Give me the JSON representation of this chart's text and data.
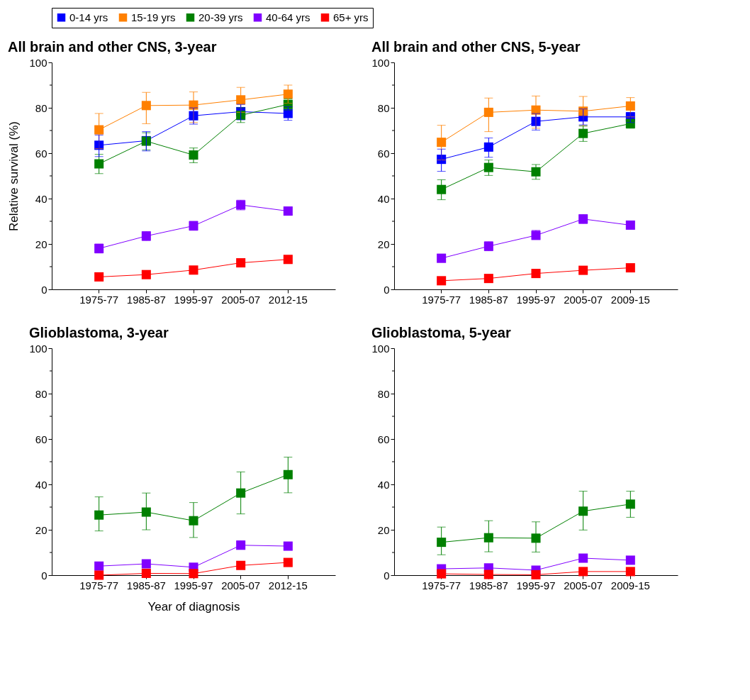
{
  "chart_data": [
    {
      "type": "line",
      "title": "All brain and other CNS, 3-year",
      "ylabel": "Relative survival (%)",
      "categories": [
        "1975-77",
        "1985-87",
        "1995-97",
        "2005-07",
        "2012-15"
      ],
      "ylim": [
        0,
        100
      ],
      "yticks": [
        0,
        {
          "value": 10,
          "label": null
        },
        20,
        {
          "value": 30,
          "label": null
        },
        40,
        {
          "value": 50,
          "label": null
        },
        60,
        {
          "value": 70,
          "label": null
        },
        80,
        {
          "value": 90,
          "label": null
        },
        100
      ],
      "marker": "square",
      "legend": "top",
      "grid": false,
      "series": [
        {
          "name": "0-14 yrs",
          "color": "#0000ff",
          "values": [
            63.5,
            65.5,
            76.5,
            78.3,
            77.5
          ],
          "errors": [
            [
              58.5,
              68
            ],
            [
              61,
              69.5
            ],
            [
              72.8,
              80
            ],
            [
              74.7,
              81.5
            ],
            [
              74.5,
              80.5
            ]
          ]
        },
        {
          "name": "15-19 yrs",
          "color": "#ff8000",
          "values": [
            70.3,
            81,
            81.2,
            83.5,
            86
          ],
          "errors": [
            [
              62,
              77.5
            ],
            [
              73,
              86.8
            ],
            [
              73.5,
              87
            ],
            [
              78,
              89
            ],
            [
              82,
              90
            ]
          ]
        },
        {
          "name": "20-39 yrs",
          "color": "#008000",
          "values": [
            55.3,
            65.3,
            59.2,
            76.7,
            81.5
          ],
          "errors": [
            [
              51,
              59.5
            ],
            [
              61.5,
              69
            ],
            [
              55.8,
              62.3
            ],
            [
              73.5,
              80
            ],
            [
              79,
              84
            ]
          ]
        },
        {
          "name": "40-64 yrs",
          "color": "#8000ff",
          "values": [
            18,
            23.5,
            28,
            37.2,
            34.5
          ],
          "errors": [
            [
              16,
              20
            ],
            [
              21.5,
              25.5
            ],
            [
              26,
              30
            ],
            [
              35,
              39.3
            ],
            [
              33,
              36
            ]
          ]
        },
        {
          "name": "65+ yrs",
          "color": "#ff0000",
          "values": [
            5.5,
            6.5,
            8.5,
            11.7,
            13.2
          ]
        }
      ]
    },
    {
      "type": "line",
      "title": "All brain and other CNS, 5-year",
      "categories": [
        "1975-77",
        "1985-87",
        "1995-97",
        "2005-07",
        "2009-15"
      ],
      "ylim": [
        0,
        100
      ],
      "yticks": [
        0,
        {
          "value": 10,
          "label": null
        },
        20,
        {
          "value": 30,
          "label": null
        },
        40,
        {
          "value": 50,
          "label": null
        },
        60,
        {
          "value": 70,
          "label": null
        },
        80,
        {
          "value": 90,
          "label": null
        },
        100
      ],
      "marker": "square",
      "grid": false,
      "series": [
        {
          "color": "#0000ff",
          "values": [
            57.3,
            62.7,
            74,
            76,
            76
          ],
          "errors": [
            [
              52,
              61.8
            ],
            [
              58.2,
              66.7
            ],
            [
              70.2,
              77.5
            ],
            [
              72.5,
              79.5
            ],
            [
              73.5,
              78
            ]
          ]
        },
        {
          "color": "#ff8000",
          "values": [
            64.8,
            78,
            79,
            78.5,
            80.8
          ],
          "errors": [
            [
              57,
              72.3
            ],
            [
              69.5,
              84.3
            ],
            [
              71,
              85.2
            ],
            [
              72,
              85
            ],
            [
              76,
              84.5
            ]
          ]
        },
        {
          "color": "#008000",
          "values": [
            44,
            53.7,
            51.8,
            68.7,
            73
          ],
          "errors": [
            [
              39.5,
              48.3
            ],
            [
              50.2,
              57
            ],
            [
              48.5,
              55
            ],
            [
              65.2,
              72
            ],
            [
              71,
              75
            ]
          ]
        },
        {
          "color": "#8000ff",
          "values": [
            13.7,
            19,
            23.8,
            31,
            28.3
          ],
          "errors": [
            [
              12,
              15.5
            ],
            [
              17,
              21
            ],
            [
              22,
              26
            ],
            [
              29,
              33
            ],
            [
              27,
              29.5
            ]
          ]
        },
        {
          "color": "#ff0000",
          "values": [
            3.8,
            4.8,
            7,
            8.4,
            9.5
          ]
        }
      ]
    },
    {
      "type": "line",
      "title": "Glioblastoma, 3-year",
      "xlabel": "Year of diagnosis",
      "categories": [
        "1975-77",
        "1985-87",
        "1995-97",
        "2005-07",
        "2012-15"
      ],
      "ylim": [
        0,
        100
      ],
      "yticks": [
        0,
        {
          "value": 10,
          "label": null
        },
        20,
        {
          "value": 30,
          "label": null
        },
        40,
        {
          "value": 50,
          "label": null
        },
        60,
        {
          "value": 70,
          "label": null
        },
        80,
        {
          "value": 90,
          "label": null
        },
        100
      ],
      "marker": "square",
      "grid": false,
      "series": [
        {
          "color": "#008000",
          "values": [
            26.5,
            27.8,
            24,
            36.2,
            44.3
          ],
          "errors": [
            [
              19.5,
              34.5
            ],
            [
              20,
              36.2
            ],
            [
              16.6,
              32
            ],
            [
              27,
              45.5
            ],
            [
              36.3,
              52
            ]
          ]
        },
        {
          "color": "#8000ff",
          "values": [
            4,
            5,
            3.5,
            13.2,
            12.8
          ],
          "errors": [
            null,
            null,
            null,
            [
              11.5,
              15.2
            ],
            null
          ]
        },
        {
          "color": "#ff0000",
          "values": [
            0,
            0.8,
            0.7,
            4.3,
            5.6
          ]
        }
      ]
    },
    {
      "type": "line",
      "title": "Glioblastoma, 5-year",
      "categories": [
        "1975-77",
        "1985-87",
        "1995-97",
        "2005-07",
        "2009-15"
      ],
      "ylim": [
        0,
        100
      ],
      "yticks": [
        0,
        {
          "value": 10,
          "label": null
        },
        20,
        {
          "value": 30,
          "label": null
        },
        40,
        {
          "value": 50,
          "label": null
        },
        60,
        {
          "value": 70,
          "label": null
        },
        80,
        {
          "value": 90,
          "label": null
        },
        100
      ],
      "marker": "square",
      "grid": false,
      "series": [
        {
          "color": "#008000",
          "values": [
            14.5,
            16.5,
            16.3,
            28.2,
            31.3
          ],
          "errors": [
            [
              9,
              21.2
            ],
            [
              10.3,
              24
            ],
            [
              10.2,
              23.5
            ],
            [
              19.9,
              37
            ],
            [
              25.5,
              37
            ]
          ]
        },
        {
          "color": "#8000ff",
          "values": [
            2.8,
            3.2,
            2.2,
            7.5,
            6.6
          ]
        },
        {
          "color": "#ff0000",
          "values": [
            0.6,
            0.3,
            0.2,
            1.6,
            1.6
          ]
        }
      ]
    }
  ]
}
